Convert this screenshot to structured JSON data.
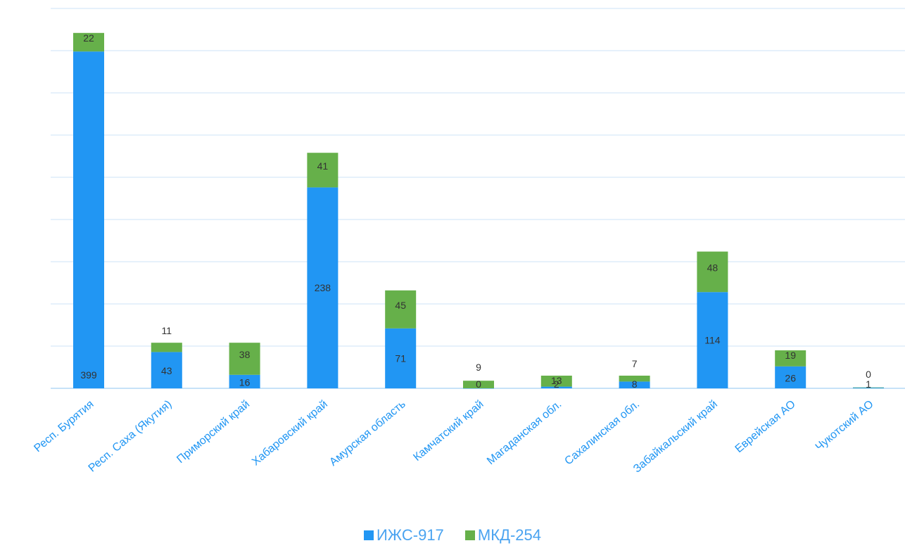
{
  "chart_data": {
    "type": "bar",
    "stacked": true,
    "categories": [
      "Респ. Бурятия",
      "Респ. Саха (Якутия)",
      "Приморский край",
      "Хабаровский край",
      "Амурская область",
      "Камчатский край",
      "Магаданская обл.",
      "Сахалинская обл.",
      "Забайкальский край",
      "Еврейская АО",
      "Чукотский АО"
    ],
    "series": [
      {
        "name": "ИЖС-917",
        "color": "#2196f3",
        "values": [
          399,
          43,
          16,
          238,
          71,
          0,
          2,
          8,
          114,
          26,
          1
        ]
      },
      {
        "name": "МКД-254",
        "color": "#66b04a",
        "values": [
          22,
          11,
          38,
          41,
          45,
          9,
          13,
          7,
          48,
          19,
          0
        ]
      }
    ],
    "ylim": [
      0,
      450
    ],
    "grid": true,
    "legend_position": "bottom"
  }
}
